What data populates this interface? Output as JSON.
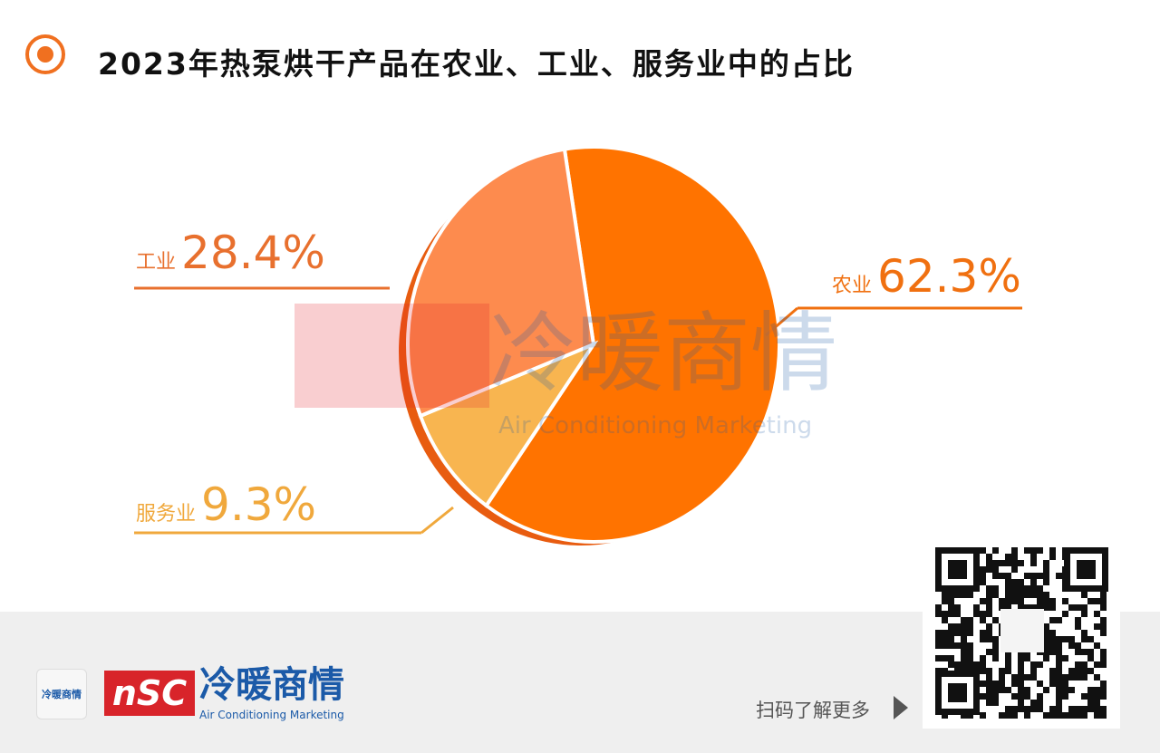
{
  "title": "2023年热泵烘干产品在农业、工业、服务业中的占比",
  "chart_data": {
    "type": "pie",
    "title": "2023年热泵烘干产品在农业、工业、服务业中的占比",
    "slices": [
      {
        "name": "农业",
        "value": 62.3,
        "label": "62.3%",
        "color": "#ff7300"
      },
      {
        "name": "服务业",
        "value": 9.3,
        "label": "9.3%",
        "color": "#f8b550"
      },
      {
        "name": "工业",
        "value": 28.4,
        "label": "28.4%",
        "color": "#fd8b4e"
      }
    ]
  },
  "watermark": {
    "cn": "冷暖商情",
    "en": "Air Conditioning Marketing"
  },
  "footer": {
    "app_logo": "冷暖商情",
    "brand_box": "nSC",
    "brand_cn": "冷暖商情",
    "brand_en": "Air Conditioning Marketing",
    "scan_text": "扫码了解更多"
  }
}
